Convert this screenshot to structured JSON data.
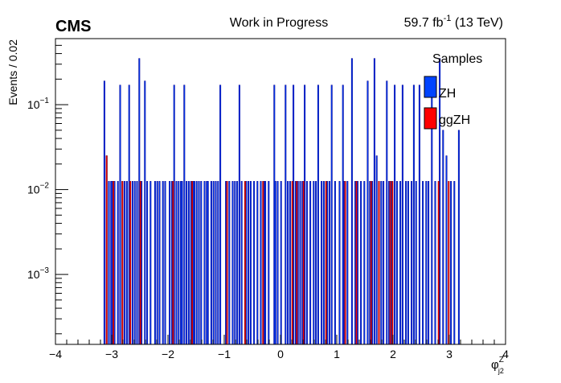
{
  "header": {
    "experiment": "CMS",
    "status": "Work in Progress",
    "lumi_value": "59.7 fb",
    "lumi_exp": "-1",
    "energy": "(13 TeV)"
  },
  "chart_data": {
    "type": "bar",
    "ylabel": "Events / 0.02",
    "xlabel_main": "φ",
    "xlabel_sup": "Z",
    "xlabel_sub": "j2",
    "xlim": [
      -4,
      4
    ],
    "ylim": [
      0.00015,
      0.6
    ],
    "yscale": "log",
    "bin_width": 0.02,
    "x_ticks": [
      -4,
      -3,
      -2,
      -1,
      0,
      1,
      2,
      3,
      4
    ],
    "x_tick_labels": [
      "−4",
      "−3",
      "−2",
      "−1",
      "0",
      "1",
      "2",
      "3",
      "4"
    ],
    "y_ticks": [
      0.001,
      0.01,
      0.1
    ],
    "y_tick_labels": [
      {
        "base": "10",
        "exp": "−3"
      },
      {
        "base": "10",
        "exp": "−2"
      },
      {
        "base": "10",
        "exp": "−1"
      }
    ],
    "legend": {
      "title": "Samples",
      "placement": "top-right",
      "entries": [
        {
          "name": "ZH",
          "color": "#0044ff"
        },
        {
          "name": "ggZH",
          "color": "#ff0000"
        }
      ]
    },
    "series": [
      {
        "name": "ZH",
        "fill": "#0044ff",
        "edge": "#000099",
        "points": [
          [
            -3.13,
            0.19
          ],
          [
            -3.09,
            0.025
          ],
          [
            -3.05,
            0.0125
          ],
          [
            -3.01,
            0.0125
          ],
          [
            -2.99,
            0.0125
          ],
          [
            -2.95,
            0.0125
          ],
          [
            -2.89,
            0.0125
          ],
          [
            -2.85,
            0.17
          ],
          [
            -2.81,
            0.0125
          ],
          [
            -2.77,
            0.0125
          ],
          [
            -2.73,
            0.0125
          ],
          [
            -2.69,
            0.17
          ],
          [
            -2.63,
            0.0125
          ],
          [
            -2.59,
            0.0125
          ],
          [
            -2.55,
            0.0125
          ],
          [
            -2.51,
            0.35
          ],
          [
            -2.47,
            0.0125
          ],
          [
            -2.41,
            0.19
          ],
          [
            -2.37,
            0.0125
          ],
          [
            -2.31,
            0.0125
          ],
          [
            -2.23,
            0.0125
          ],
          [
            -2.19,
            0.0125
          ],
          [
            -2.15,
            0.0125
          ],
          [
            -2.09,
            0.0125
          ],
          [
            -2.05,
            0.0125
          ],
          [
            -1.97,
            0.0125
          ],
          [
            -1.93,
            0.0125
          ],
          [
            -1.89,
            0.17
          ],
          [
            -1.85,
            0.0125
          ],
          [
            -1.81,
            0.0125
          ],
          [
            -1.77,
            0.0125
          ],
          [
            -1.75,
            0.0125
          ],
          [
            -1.71,
            0.17
          ],
          [
            -1.67,
            0.0125
          ],
          [
            -1.63,
            0.0125
          ],
          [
            -1.59,
            0.0125
          ],
          [
            -1.55,
            0.0125
          ],
          [
            -1.53,
            0.0125
          ],
          [
            -1.49,
            0.0125
          ],
          [
            -1.45,
            0.0125
          ],
          [
            -1.41,
            0.0125
          ],
          [
            -1.35,
            0.0125
          ],
          [
            -1.31,
            0.0125
          ],
          [
            -1.29,
            0.0125
          ],
          [
            -1.23,
            0.0125
          ],
          [
            -1.19,
            0.0125
          ],
          [
            -1.15,
            0.0125
          ],
          [
            -1.11,
            0.0125
          ],
          [
            -1.07,
            0.17
          ],
          [
            -0.97,
            0.0125
          ],
          [
            -0.91,
            0.0125
          ],
          [
            -0.85,
            0.0125
          ],
          [
            -0.81,
            0.0125
          ],
          [
            -0.77,
            0.0125
          ],
          [
            -0.73,
            0.17
          ],
          [
            -0.69,
            0.0125
          ],
          [
            -0.61,
            0.0125
          ],
          [
            -0.57,
            0.0125
          ],
          [
            -0.53,
            0.0125
          ],
          [
            -0.47,
            0.0125
          ],
          [
            -0.41,
            0.0125
          ],
          [
            -0.35,
            0.0125
          ],
          [
            -0.29,
            0.0125
          ],
          [
            -0.27,
            0.0125
          ],
          [
            -0.21,
            0.0125
          ],
          [
            -0.11,
            0.17
          ],
          [
            -0.09,
            0.0125
          ],
          [
            -0.05,
            0.0125
          ],
          [
            0.01,
            0.0125
          ],
          [
            0.09,
            0.17
          ],
          [
            0.13,
            0.0125
          ],
          [
            0.17,
            0.0125
          ],
          [
            0.23,
            0.17
          ],
          [
            0.27,
            0.0125
          ],
          [
            0.31,
            0.0125
          ],
          [
            0.35,
            0.0125
          ],
          [
            0.39,
            0.0125
          ],
          [
            0.43,
            0.17
          ],
          [
            0.47,
            0.0125
          ],
          [
            0.53,
            0.0125
          ],
          [
            0.59,
            0.0125
          ],
          [
            0.63,
            0.0125
          ],
          [
            0.67,
            0.17
          ],
          [
            0.73,
            0.0125
          ],
          [
            0.77,
            0.0125
          ],
          [
            0.83,
            0.0125
          ],
          [
            0.87,
            0.0125
          ],
          [
            0.91,
            0.17
          ],
          [
            0.97,
            0.0125
          ],
          [
            1.05,
            0.0125
          ],
          [
            1.11,
            0.17
          ],
          [
            1.13,
            0.0125
          ],
          [
            1.19,
            0.0125
          ],
          [
            1.27,
            0.35
          ],
          [
            1.33,
            0.0125
          ],
          [
            1.37,
            0.0125
          ],
          [
            1.43,
            0.0125
          ],
          [
            1.49,
            0.0125
          ],
          [
            1.55,
            0.19
          ],
          [
            1.59,
            0.0125
          ],
          [
            1.63,
            0.0125
          ],
          [
            1.67,
            0.35
          ],
          [
            1.71,
            0.025
          ],
          [
            1.75,
            0.0125
          ],
          [
            1.79,
            0.0125
          ],
          [
            1.83,
            0.0125
          ],
          [
            1.89,
            0.19
          ],
          [
            1.93,
            0.0125
          ],
          [
            1.97,
            0.0125
          ],
          [
            2.03,
            0.17
          ],
          [
            2.07,
            0.0125
          ],
          [
            2.13,
            0.0125
          ],
          [
            2.17,
            0.17
          ],
          [
            2.23,
            0.0125
          ],
          [
            2.27,
            0.0125
          ],
          [
            2.33,
            0.0125
          ],
          [
            2.37,
            0.17
          ],
          [
            2.41,
            0.0125
          ],
          [
            2.47,
            0.17
          ],
          [
            2.53,
            0.0125
          ],
          [
            2.59,
            0.0125
          ],
          [
            2.63,
            0.0125
          ],
          [
            2.69,
            0.19
          ],
          [
            2.75,
            0.0125
          ],
          [
            2.83,
            0.35
          ],
          [
            2.89,
            0.05
          ],
          [
            2.95,
            0.025
          ],
          [
            3.03,
            0.0125
          ],
          [
            3.09,
            0.0125
          ],
          [
            3.17,
            0.05
          ]
        ]
      },
      {
        "name": "ggZH",
        "fill": "#ff0000",
        "edge": "#990000",
        "points": [
          [
            -3.09,
            0.025
          ],
          [
            -2.97,
            0.0125
          ],
          [
            -2.81,
            0.0125
          ],
          [
            -2.67,
            0.0125
          ],
          [
            -2.49,
            0.0125
          ],
          [
            -1.91,
            0.0125
          ],
          [
            -1.57,
            0.0125
          ],
          [
            -0.95,
            0.0125
          ],
          [
            -0.63,
            0.0125
          ],
          [
            -0.31,
            0.0125
          ],
          [
            0.21,
            0.0125
          ],
          [
            0.29,
            0.0125
          ],
          [
            0.41,
            0.0125
          ],
          [
            0.81,
            0.0125
          ],
          [
            1.15,
            0.0125
          ],
          [
            1.35,
            0.0125
          ],
          [
            1.61,
            0.0125
          ],
          [
            1.75,
            0.0125
          ],
          [
            1.95,
            0.0125
          ],
          [
            1.99,
            0.0125
          ],
          [
            2.81,
            0.0125
          ],
          [
            2.99,
            0.0125
          ]
        ]
      }
    ]
  }
}
